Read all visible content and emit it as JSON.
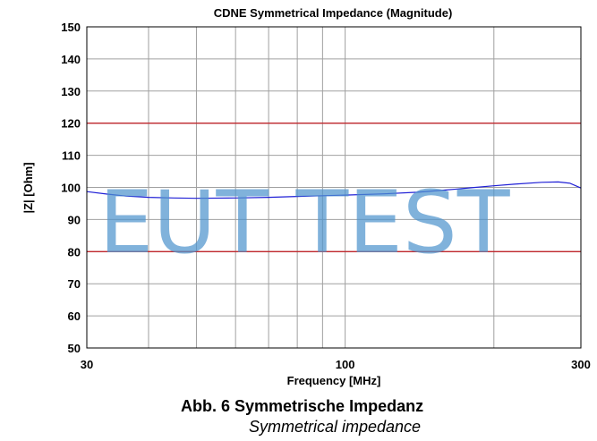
{
  "chart_data": {
    "type": "line",
    "title": "CDNE Symmetrical Impedance (Magnitude)",
    "xlabel": "Frequency [MHz]",
    "ylabel": "|Z| [Ohm]",
    "x_scale": "log",
    "xlim": [
      30,
      300
    ],
    "ylim": [
      50,
      150
    ],
    "x_ticks": [
      "30",
      "100",
      "300"
    ],
    "y_ticks": [
      "50",
      "60",
      "70",
      "80",
      "90",
      "100",
      "110",
      "120",
      "130",
      "140",
      "150"
    ],
    "grid": true,
    "limit_lines": [
      120,
      80
    ],
    "series": [
      {
        "x": [
          30,
          33,
          36,
          40,
          45,
          50,
          60,
          70,
          80,
          90,
          100,
          120,
          140,
          160,
          180,
          200,
          220,
          250,
          270,
          285,
          300
        ],
        "y": [
          98.7,
          97.9,
          97.3,
          96.9,
          96.7,
          96.6,
          96.7,
          96.9,
          97.2,
          97.4,
          97.6,
          98.0,
          98.5,
          99.2,
          99.9,
          100.5,
          101.0,
          101.6,
          101.7,
          101.3,
          99.8
        ]
      }
    ],
    "colors": {
      "curve": "#1f1fd6",
      "limit": "#c0282d",
      "grid": "#a0a0a0"
    }
  },
  "watermark": "EUT TEST",
  "caption": {
    "main": "Abb. 6 Symmetrische Impedanz",
    "sub": "Symmetrical impedance"
  }
}
